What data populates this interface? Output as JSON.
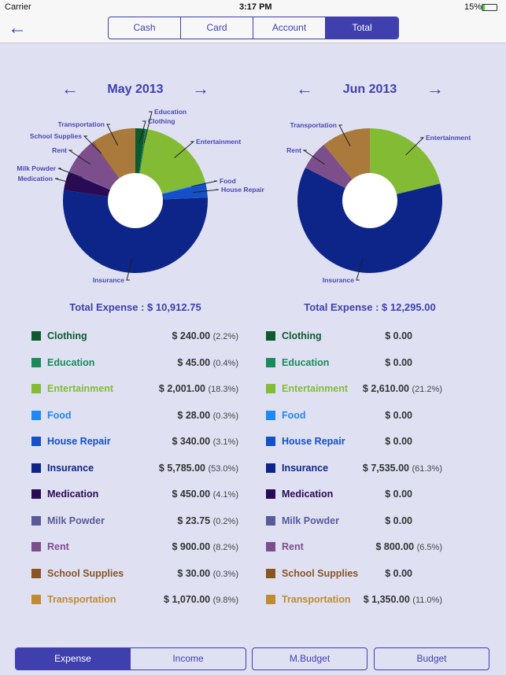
{
  "status": {
    "carrier": "Carrier",
    "time": "3:17 PM",
    "battery": "15%"
  },
  "nav": {
    "back_icon": "arrow-left-icon",
    "tabs": [
      {
        "label": "Cash"
      },
      {
        "label": "Card"
      },
      {
        "label": "Account"
      },
      {
        "label": "Total",
        "active": true
      }
    ]
  },
  "categories": [
    {
      "name": "Clothing",
      "color": "#0f5a2c"
    },
    {
      "name": "Education",
      "color": "#1a8a5a"
    },
    {
      "name": "Entertainment",
      "color": "#84bb35"
    },
    {
      "name": "Food",
      "color": "#1e88f5"
    },
    {
      "name": "House Repair",
      "color": "#1450c8"
    },
    {
      "name": "Insurance",
      "color": "#0d2488"
    },
    {
      "name": "Medication",
      "color": "#2a0a55"
    },
    {
      "name": "Milk Powder",
      "color": "#5a5a9a"
    },
    {
      "name": "Rent",
      "color": "#7d4e8c"
    },
    {
      "name": "School Supplies",
      "color": "#8a5522"
    },
    {
      "name": "Transportation",
      "color": "#c08a30"
    }
  ],
  "chart_data": [
    {
      "type": "pie",
      "title": "May 2013",
      "total_label": "Total Expense : $ 10,912.75",
      "values": [
        240,
        45,
        2001,
        28,
        340,
        5785,
        450,
        23.75,
        900,
        30,
        1070
      ],
      "amounts": [
        "$ 240.00",
        "$ 45.00",
        "$ 2,001.00",
        "$ 28.00",
        "$ 340.00",
        "$ 5,785.00",
        "$ 450.00",
        "$ 23.75",
        "$ 900.00",
        "$ 30.00",
        "$ 1,070.00"
      ],
      "percents": [
        "(2.2%)",
        "(0.4%)",
        "(18.3%)",
        "(0.3%)",
        "(3.1%)",
        "(53.0%)",
        "(4.1%)",
        "(0.2%)",
        "(8.2%)",
        "(0.3%)",
        "(9.8%)"
      ]
    },
    {
      "type": "pie",
      "title": "Jun 2013",
      "total_label": "Total Expense : $ 12,295.00",
      "values": [
        0,
        0,
        2610,
        0,
        0,
        7535,
        0,
        0,
        800,
        0,
        1350
      ],
      "amounts": [
        "$ 0.00",
        "$ 0.00",
        "$ 2,610.00",
        "$ 0.00",
        "$ 0.00",
        "$ 7,535.00",
        "$ 0.00",
        "$ 0.00",
        "$ 800.00",
        "$ 0.00",
        "$ 1,350.00"
      ],
      "percents": [
        "",
        "",
        "(21.2%)",
        "",
        "",
        "(61.3%)",
        "",
        "",
        "(6.5%)",
        "",
        "(11.0%)"
      ]
    }
  ],
  "bottom_tabs": [
    {
      "label": "Expense",
      "active": true
    },
    {
      "label": "Income"
    },
    {
      "label": "M.Budget"
    },
    {
      "label": "Budget"
    }
  ],
  "accent": "#3f3fae"
}
